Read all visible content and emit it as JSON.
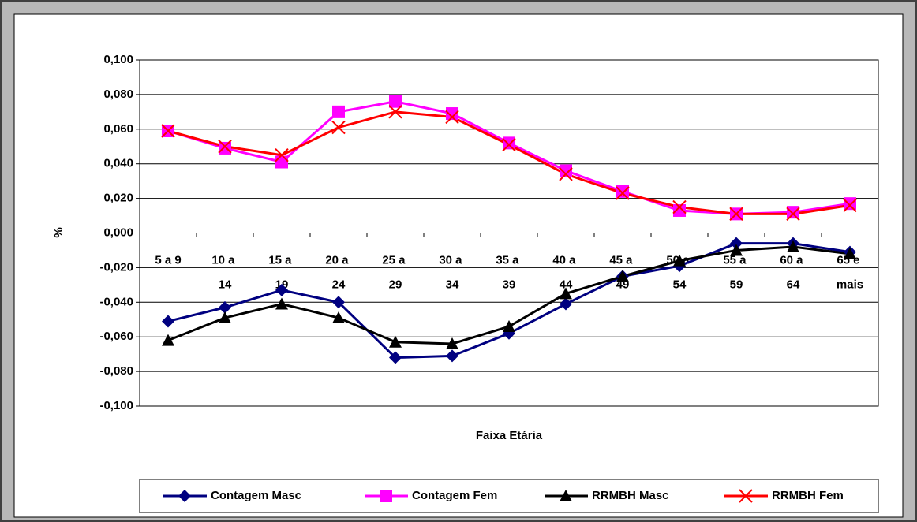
{
  "chart_data": {
    "type": "line",
    "x_label": "Faixa Etária",
    "y_label": "%",
    "categories": [
      "5 a 9",
      "10 a 14",
      "15 a 19",
      "20 a 24",
      "25 a 29",
      "30 a 34",
      "35 a 39",
      "40 a 44",
      "45 a 49",
      "50 a 54",
      "55 a 59",
      "60 a 64",
      "65 e mais"
    ],
    "series": [
      {
        "name": "Contagem Masc",
        "color": "#000080",
        "marker": "diamond",
        "values": [
          -0.051,
          -0.043,
          -0.033,
          -0.04,
          -0.072,
          -0.071,
          -0.058,
          -0.041,
          -0.025,
          -0.019,
          -0.006,
          -0.006,
          -0.011
        ]
      },
      {
        "name": "Contagem Fem",
        "color": "#ff00ff",
        "marker": "square",
        "values": [
          0.059,
          0.049,
          0.041,
          0.07,
          0.076,
          0.069,
          0.052,
          0.036,
          0.024,
          0.013,
          0.011,
          0.012,
          0.017
        ]
      },
      {
        "name": "RRMBH Masc",
        "color": "#000000",
        "marker": "triangle",
        "values": [
          -0.062,
          -0.049,
          -0.041,
          -0.049,
          -0.063,
          -0.064,
          -0.054,
          -0.035,
          -0.025,
          -0.016,
          -0.01,
          -0.008,
          -0.012
        ]
      },
      {
        "name": "RRMBH Fem",
        "color": "#ff0000",
        "marker": "x",
        "values": [
          0.059,
          0.05,
          0.045,
          0.061,
          0.07,
          0.067,
          0.051,
          0.034,
          0.023,
          0.015,
          0.011,
          0.011,
          0.016
        ]
      }
    ],
    "ylim": [
      -0.1,
      0.1
    ],
    "yticks": [
      {
        "value": -0.1,
        "label": "-0,100"
      },
      {
        "value": -0.08,
        "label": "-0,080"
      },
      {
        "value": -0.06,
        "label": "-0,060"
      },
      {
        "value": -0.04,
        "label": "-0,040"
      },
      {
        "value": -0.02,
        "label": "-0,020"
      },
      {
        "value": 0,
        "label": "0,000"
      },
      {
        "value": 0.02,
        "label": "0,020"
      },
      {
        "value": 0.04,
        "label": "0,040"
      },
      {
        "value": 0.06,
        "label": "0,060"
      },
      {
        "value": 0.08,
        "label": "0,080"
      },
      {
        "value": 0.1,
        "label": "0,100"
      }
    ],
    "grid": true,
    "legend": "bottom"
  }
}
